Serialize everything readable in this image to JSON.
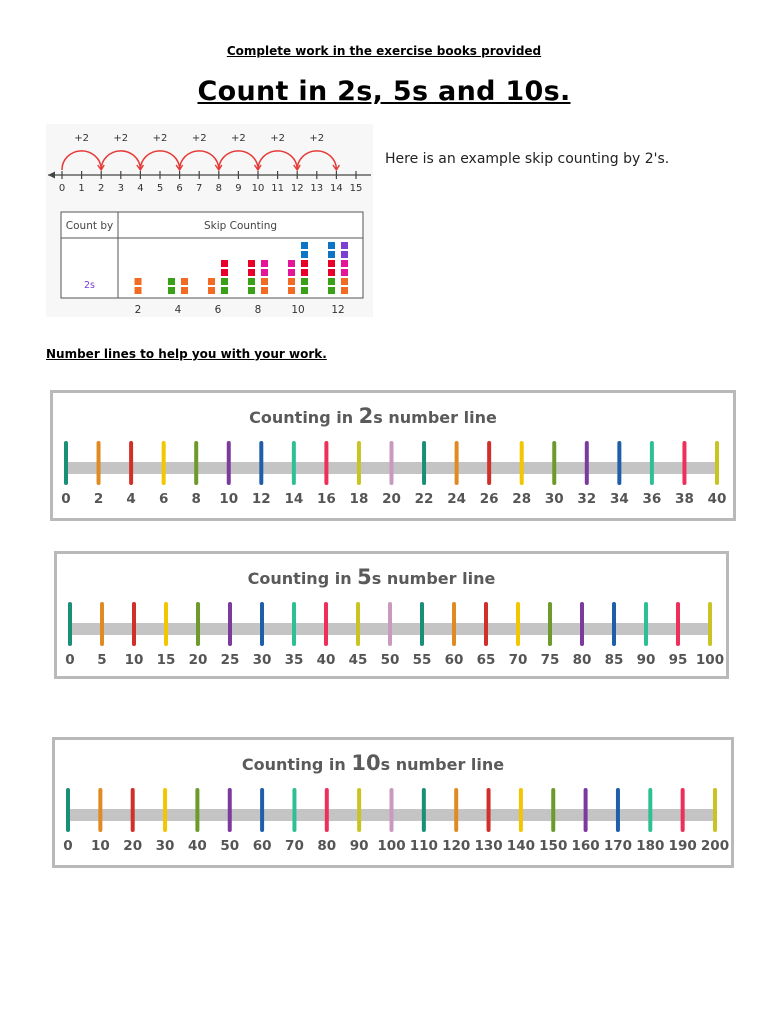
{
  "header": {
    "instruction": "Complete work in the exercise books provided",
    "title": "Count in 2s, 5s and 10s."
  },
  "example": {
    "caption": "Here is an example skip counting by 2's.",
    "jump_label": "+2",
    "jumps": [
      [
        0,
        2
      ],
      [
        2,
        4
      ],
      [
        4,
        6
      ],
      [
        6,
        8
      ],
      [
        8,
        10
      ],
      [
        10,
        12
      ],
      [
        12,
        14
      ]
    ],
    "ticks": [
      0,
      1,
      2,
      3,
      4,
      5,
      6,
      7,
      8,
      9,
      10,
      11,
      12,
      13,
      14,
      15
    ],
    "table": {
      "col1_header": "Count by",
      "col2_header": "Skip Counting",
      "row_label": "2s",
      "x_labels": [
        "2",
        "4",
        "6",
        "8",
        "10",
        "12"
      ]
    },
    "block_colors": {
      "orange": "#f26b22",
      "green": "#3aa017",
      "red": "#e8002a",
      "pink": "#e5159a",
      "blue": "#0d75c5",
      "purple": "#7b3fd1"
    }
  },
  "section": {
    "subheading": "Number lines to help you with your work."
  },
  "number_lines": [
    {
      "title_prefix": "Counting in ",
      "title_num": "2",
      "title_suffix": "s number line",
      "values": [
        "0",
        "2",
        "4",
        "6",
        "8",
        "10",
        "12",
        "14",
        "16",
        "18",
        "20",
        "22",
        "24",
        "26",
        "28",
        "30",
        "32",
        "34",
        "36",
        "38",
        "40"
      ]
    },
    {
      "title_prefix": "Counting in ",
      "title_num": "5",
      "title_suffix": "s number line",
      "values": [
        "0",
        "5",
        "10",
        "15",
        "20",
        "25",
        "30",
        "35",
        "40",
        "45",
        "50",
        "55",
        "60",
        "65",
        "70",
        "75",
        "80",
        "85",
        "90",
        "95",
        "100"
      ]
    },
    {
      "title_prefix": "Counting in ",
      "title_num": "10",
      "title_suffix": "s number line",
      "values": [
        "0",
        "10",
        "20",
        "30",
        "40",
        "50",
        "60",
        "70",
        "80",
        "90",
        "100",
        "110",
        "120",
        "130",
        "140",
        "150",
        "160",
        "170",
        "180",
        "190",
        "200"
      ]
    }
  ],
  "tick_colors": [
    "#1a8f77",
    "#e08a22",
    "#d12f2a",
    "#f2c600",
    "#6e9a2c",
    "#7b3a9e",
    "#1f5ea8",
    "#2fbf95",
    "#ee2f5a",
    "#c9c422",
    "#c89ac0",
    "#1a8f77",
    "#e08a22",
    "#d12f2a",
    "#f2c600",
    "#6e9a2c",
    "#7b3a9e",
    "#1f5ea8",
    "#2fbf95",
    "#ee2f5a",
    "#c9c422"
  ],
  "colors": {
    "arc": "#e53935",
    "line_bar": "#c4c4c4",
    "box_border": "#b9b9b9",
    "label_gray": "#555555",
    "row_label": "#7a3fd1"
  }
}
